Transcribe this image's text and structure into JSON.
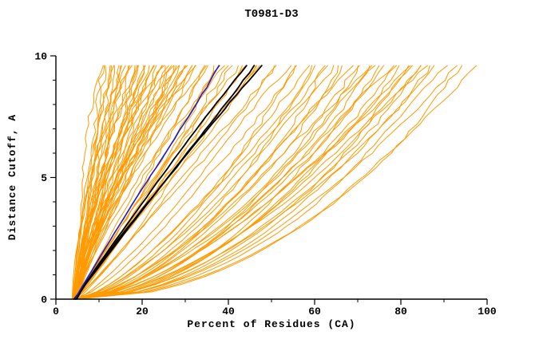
{
  "chart_data": {
    "type": "line",
    "title": "T0981-D3",
    "xlabel": "Percent of Residues (CA)",
    "ylabel": "Distance Cutoff, A",
    "xlim": [
      0,
      100
    ],
    "ylim": [
      0,
      10
    ],
    "x_major_ticks": [
      0,
      20,
      40,
      60,
      80,
      100
    ],
    "x_minor_step": 10,
    "y_major_ticks": [
      0,
      5,
      10
    ],
    "y_minor_step": 1,
    "grid": false,
    "legend": "none",
    "curve_top_y": 9.6,
    "colors": {
      "model": "#ff9a00",
      "reference": "#000000",
      "highlight": "#1c1ccc",
      "axis": "#000000",
      "background": "#ffffff"
    },
    "series_note": "curves encoded as [x_start_percent, x_end_percent_at_top, shape_exponent]",
    "curves": {
      "orange": [
        [
          4,
          10,
          1.3
        ],
        [
          4.5,
          11,
          1.2
        ],
        [
          3.8,
          12,
          1.35
        ],
        [
          5,
          12.5,
          1.1
        ],
        [
          4.2,
          13,
          1.25
        ],
        [
          4.8,
          13.5,
          1.4
        ],
        [
          4,
          14,
          1.15
        ],
        [
          5.2,
          14.5,
          1.3
        ],
        [
          4.4,
          15,
          1.2
        ],
        [
          3.9,
          15.5,
          1.45
        ],
        [
          4.6,
          16,
          1.1
        ],
        [
          5,
          16.5,
          1.3
        ],
        [
          4.1,
          17,
          1.2
        ],
        [
          4.7,
          17.5,
          1.35
        ],
        [
          4.3,
          18,
          1.15
        ],
        [
          5.1,
          18.5,
          1.25
        ],
        [
          4,
          19,
          1.4
        ],
        [
          4.8,
          19.5,
          1.1
        ],
        [
          4.4,
          20,
          1.3
        ],
        [
          5.3,
          20.5,
          1.2
        ],
        [
          3.9,
          21,
          1.35
        ],
        [
          4.5,
          21.5,
          1.15
        ],
        [
          5,
          22,
          1.25
        ],
        [
          4.2,
          22.5,
          1.4
        ],
        [
          4.7,
          23,
          1.1
        ],
        [
          4.3,
          23.5,
          1.3
        ],
        [
          5.2,
          24,
          1.2
        ],
        [
          4,
          24.5,
          1.35
        ],
        [
          4.9,
          25,
          1.15
        ],
        [
          4.4,
          25.5,
          1.25
        ],
        [
          5,
          26,
          1.4
        ],
        [
          4.2,
          26.5,
          1.1
        ],
        [
          4.6,
          27,
          1.3
        ],
        [
          5.1,
          27.5,
          1.2
        ],
        [
          4.3,
          28,
          1.35
        ],
        [
          4.8,
          28.5,
          1.15
        ],
        [
          4,
          29,
          1.25
        ],
        [
          5.2,
          29.5,
          1.4
        ],
        [
          4.5,
          30,
          1.1
        ],
        [
          4.9,
          30.5,
          1.3
        ],
        [
          4.1,
          31,
          1.2
        ],
        [
          4.6,
          31.5,
          1.35
        ],
        [
          5,
          32,
          1.15
        ],
        [
          4.3,
          33,
          1.25
        ],
        [
          4.8,
          34,
          1.4
        ],
        [
          4.2,
          35,
          1.1
        ],
        [
          4.5,
          36,
          1.0
        ],
        [
          5,
          37,
          1.1
        ],
        [
          4.2,
          38,
          0.95
        ],
        [
          4.8,
          39,
          1.05
        ],
        [
          4.4,
          40,
          0.9
        ],
        [
          5.1,
          41,
          1.1
        ],
        [
          4,
          42,
          1.0
        ],
        [
          4.7,
          43,
          0.95
        ],
        [
          4.3,
          45,
          1.05
        ],
        [
          5,
          46,
          0.9
        ],
        [
          4.5,
          47,
          1.0
        ],
        [
          4.9,
          48,
          1.1
        ],
        [
          4.2,
          50,
          0.9
        ],
        [
          4.6,
          52,
          0.95
        ],
        [
          5.1,
          54,
          0.85
        ],
        [
          4.4,
          55,
          0.75
        ],
        [
          5,
          57,
          0.7
        ],
        [
          4.2,
          58,
          0.65
        ],
        [
          4.8,
          60,
          0.72
        ],
        [
          4.5,
          61,
          0.6
        ],
        [
          5.2,
          62,
          0.68
        ],
        [
          4,
          63,
          0.55
        ],
        [
          4.6,
          65,
          0.7
        ],
        [
          5,
          66,
          0.62
        ],
        [
          4.3,
          67,
          0.58
        ],
        [
          4.8,
          68,
          0.66
        ],
        [
          4.1,
          70,
          0.52
        ],
        [
          4.9,
          71,
          0.6
        ],
        [
          4.4,
          72,
          0.68
        ],
        [
          5.1,
          73,
          0.55
        ],
        [
          4.2,
          74,
          0.62
        ],
        [
          4.7,
          75,
          0.5
        ],
        [
          4.3,
          76,
          0.58
        ],
        [
          5,
          78,
          0.65
        ],
        [
          4.5,
          79,
          0.52
        ],
        [
          4.1,
          80,
          0.6
        ],
        [
          4.8,
          81,
          0.55
        ],
        [
          4.4,
          82,
          0.62
        ],
        [
          5.2,
          83,
          0.5
        ],
        [
          4,
          84,
          0.57
        ],
        [
          4.6,
          85,
          0.53
        ],
        [
          4.9,
          86,
          0.6
        ],
        [
          4.3,
          87,
          0.5
        ],
        [
          4.7,
          88,
          0.55
        ],
        [
          4.2,
          90,
          0.48
        ],
        [
          4.8,
          92,
          0.52
        ],
        [
          4.5,
          95,
          0.47
        ],
        [
          5,
          97,
          0.5
        ]
      ],
      "black": [
        [
          4.5,
          44,
          1.05
        ],
        [
          4.2,
          46,
          1.0
        ],
        [
          4.8,
          48,
          1.1
        ]
      ],
      "blue": [
        [
          4.4,
          38,
          1.02
        ]
      ]
    }
  }
}
